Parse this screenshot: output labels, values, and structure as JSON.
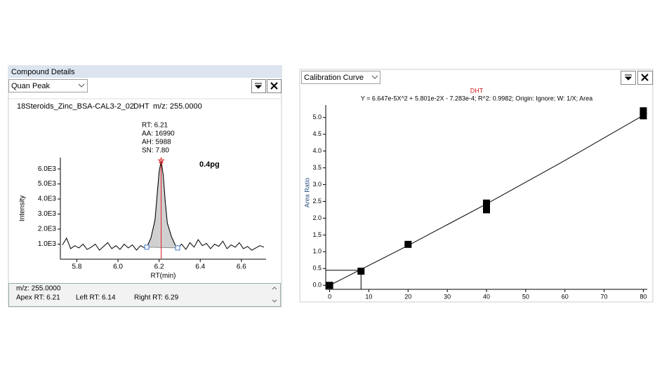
{
  "left_panel": {
    "title": "Compound Details",
    "dropdown": "Quan Peak",
    "sample": "18Steroids_Zinc_BSA-CAL3-2_02",
    "compound": "DHT",
    "mz": "m/z: 255.0000"
  },
  "details": {
    "mz": "m/z: 255.0000",
    "apex_rt": "Apex RT:  6.21",
    "left_rt": "Left RT:  6.14",
    "right_rt": "Right RT:  6.29"
  },
  "right_panel": {
    "dropdown": "Calibration Curve"
  },
  "chart_data": [
    {
      "type": "line",
      "xlabel": "RT(min)",
      "ylabel": "Intensity",
      "annotations": [
        "RT: 6.21",
        "AA: 16990",
        "AH: 5988",
        "SN: 7.80"
      ],
      "note": "0.4pg",
      "x": [
        5.73,
        5.75,
        5.77,
        5.79,
        5.81,
        5.83,
        5.85,
        5.87,
        5.89,
        5.91,
        5.93,
        5.95,
        5.97,
        5.99,
        6.01,
        6.03,
        6.05,
        6.07,
        6.09,
        6.11,
        6.13,
        6.14,
        6.16,
        6.18,
        6.19,
        6.2,
        6.21,
        6.22,
        6.23,
        6.24,
        6.26,
        6.28,
        6.29,
        6.31,
        6.33,
        6.35,
        6.37,
        6.39,
        6.41,
        6.43,
        6.45,
        6.47,
        6.49,
        6.51,
        6.53,
        6.55,
        6.57,
        6.59,
        6.61,
        6.63,
        6.65,
        6.67,
        6.69,
        6.71
      ],
      "values": [
        950,
        1400,
        700,
        900,
        750,
        1000,
        650,
        800,
        1000,
        600,
        850,
        1100,
        700,
        900,
        650,
        1000,
        750,
        950,
        600,
        900,
        750,
        800,
        1400,
        2600,
        4200,
        5800,
        6550,
        5600,
        3800,
        2400,
        1500,
        900,
        750,
        1000,
        650,
        1100,
        800,
        1300,
        900,
        1050,
        700,
        1000,
        850,
        1200,
        700,
        950,
        800,
        1100,
        700,
        850,
        600,
        750,
        900,
        800
      ],
      "peak_bounds": [
        6.14,
        6.29
      ],
      "color": "#000000",
      "fill": "#d0d0d0",
      "apex_color": "#e02020",
      "bound_color": "#3a78c8",
      "xlim": [
        5.72,
        6.72
      ],
      "ylim": [
        0,
        6750
      ],
      "xticks": [
        5.8,
        {
          "value": 6.0,
          "label": "6.0"
        },
        6.2,
        6.4,
        6.6
      ],
      "yticks": [
        {
          "value": 1000,
          "label": "1.0E3"
        },
        {
          "value": 2000,
          "label": "2.0E3"
        },
        {
          "value": 3000,
          "label": "3.0E3"
        },
        {
          "value": 4000,
          "label": "4.0E3"
        },
        {
          "value": 5000,
          "label": "5.0E3"
        },
        {
          "value": 6000,
          "label": "6.0E3"
        }
      ]
    },
    {
      "type": "scatter",
      "title": "DHT",
      "subtitle": "Y = 6.647e-5X^2 + 5.801e-2X - 7.283e-4; R^2: 0.9982; Origin: Ignore; W: 1/X; Area",
      "ylabel": "Area Ratio",
      "x": [
        0,
        8,
        20,
        40,
        40,
        80,
        80
      ],
      "values": [
        0,
        0.42,
        1.22,
        2.25,
        2.45,
        5.05,
        5.2
      ],
      "fit": {
        "x": [
          0,
          20,
          40,
          60,
          80
        ],
        "values": [
          -0.0007,
          1.186,
          2.426,
          3.719,
          5.065
        ]
      },
      "cursor": {
        "x": 8,
        "y": 0.45
      },
      "color": "#000000",
      "title_color": "#d02020",
      "xlim": [
        -1,
        81
      ],
      "ylim": [
        -0.12,
        5.37
      ],
      "xticks": [
        0,
        10,
        20,
        30,
        40,
        50,
        60,
        70,
        80
      ],
      "yticks": [
        {
          "value": 0,
          "label": "0.0"
        },
        0.5,
        {
          "value": 1,
          "label": "1.0"
        },
        1.5,
        {
          "value": 2,
          "label": "2.0"
        },
        2.5,
        {
          "value": 3,
          "label": "3.0"
        },
        3.5,
        {
          "value": 4,
          "label": "4.0"
        },
        4.5,
        {
          "value": 5,
          "label": "5.0"
        }
      ]
    }
  ]
}
